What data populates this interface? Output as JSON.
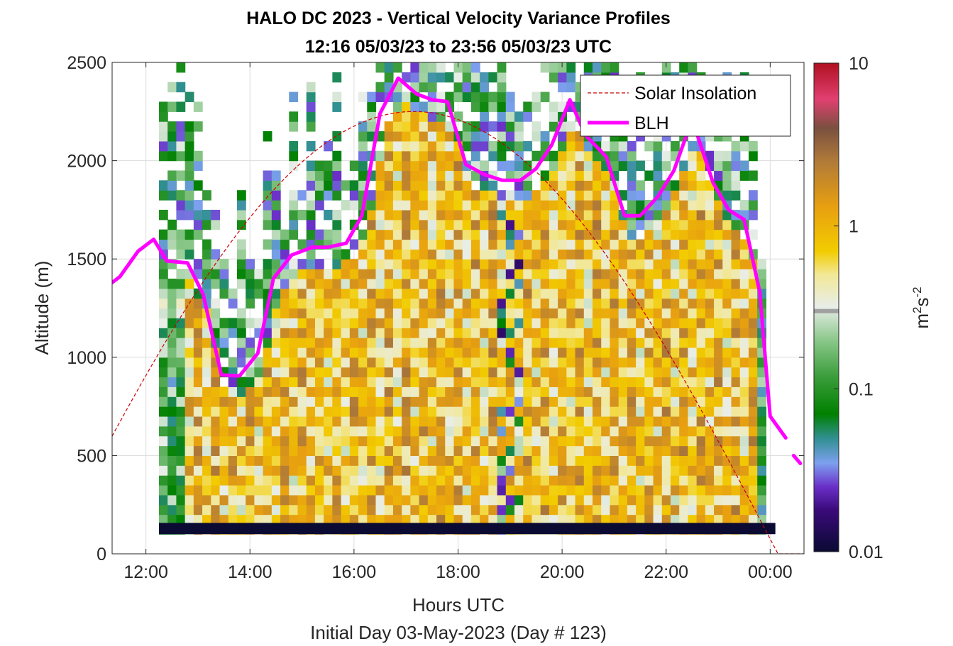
{
  "chart_data": {
    "type": "heatmap",
    "title_line1": "HALO DC 2023 - Vertical Velocity Variance Profiles",
    "title_line2": "12:16 05/03/23 to 23:56 05/03/23  UTC",
    "xlabel": "Hours UTC",
    "ylabel": "Altitude (m)",
    "footer": "Initial Day 03-May-2023 (Day # 123)",
    "x_ticks": [
      {
        "value": 12,
        "label": "12:00"
      },
      {
        "value": 14,
        "label": "14:00"
      },
      {
        "value": 16,
        "label": "16:00"
      },
      {
        "value": 18,
        "label": "18:00"
      },
      {
        "value": 20,
        "label": "20:00"
      },
      {
        "value": 22,
        "label": "22:00"
      },
      {
        "value": 24,
        "label": "00:00"
      }
    ],
    "y_ticks": [
      0,
      500,
      1000,
      1500,
      2000,
      2500
    ],
    "xlim": [
      11.35,
      24.65
    ],
    "ylim": [
      0,
      2500
    ],
    "grid": true,
    "colorbar": {
      "label_base": "m",
      "label_sup1": "2",
      "label_mid": "s",
      "label_sup2": "-2",
      "scale": "log",
      "range": [
        0.01,
        10
      ],
      "ticks": [
        {
          "value": 0.01,
          "label": "0.01"
        },
        {
          "value": 0.1,
          "label": "0.1"
        },
        {
          "value": 1,
          "label": "1"
        },
        {
          "value": 10,
          "label": "10"
        }
      ],
      "stops": [
        {
          "v": 0.01,
          "color": "#0a0a33"
        },
        {
          "v": 0.018,
          "color": "#3a0a7a"
        },
        {
          "v": 0.025,
          "color": "#6a2fc8"
        },
        {
          "v": 0.035,
          "color": "#7da0ef"
        },
        {
          "v": 0.05,
          "color": "#2f8f8f"
        },
        {
          "v": 0.07,
          "color": "#008000"
        },
        {
          "v": 0.12,
          "color": "#3c9e3c"
        },
        {
          "v": 0.2,
          "color": "#8cc88c"
        },
        {
          "v": 0.32,
          "color": "#e8ede8"
        },
        {
          "v": 0.5,
          "color": "#f2e898"
        },
        {
          "v": 0.7,
          "color": "#f2cc00"
        },
        {
          "v": 1.3,
          "color": "#e8a010"
        },
        {
          "v": 2.5,
          "color": "#b07a38"
        },
        {
          "v": 4.0,
          "color": "#7a5040"
        },
        {
          "v": 6.0,
          "color": "#e04070"
        },
        {
          "v": 10,
          "color": "#b01020"
        }
      ],
      "marker_value": 0.3
    },
    "legend": {
      "position": "top-right",
      "entries": [
        {
          "label": "Solar Insolation",
          "color": "#cc0000",
          "style": "dashed"
        },
        {
          "label": "BLH",
          "color": "#ff00ff",
          "style": "solid"
        }
      ]
    },
    "blh_series": {
      "name": "BLH",
      "x": [
        11.35,
        11.5,
        11.85,
        12.15,
        12.4,
        12.8,
        13.1,
        13.45,
        13.8,
        14.15,
        14.45,
        14.8,
        15.2,
        15.5,
        15.85,
        16.15,
        16.5,
        16.85,
        17.2,
        17.5,
        17.8,
        18.15,
        18.5,
        18.85,
        19.2,
        19.5,
        19.8,
        20.15,
        20.45,
        20.85,
        21.2,
        21.5,
        21.85,
        22.15,
        22.5,
        22.9,
        23.2,
        23.5,
        23.8,
        24.0,
        24.3
      ],
      "y": [
        1380,
        1410,
        1540,
        1600,
        1490,
        1480,
        1320,
        910,
        905,
        1020,
        1400,
        1520,
        1560,
        1560,
        1580,
        1720,
        2240,
        2420,
        2340,
        2310,
        2300,
        1980,
        1930,
        1900,
        1900,
        1960,
        2080,
        2310,
        2130,
        2020,
        1720,
        1720,
        1820,
        1950,
        2210,
        1890,
        1750,
        1700,
        1330,
        700,
        590
      ]
    },
    "blh_tail": {
      "x": [
        24.45,
        24.58
      ],
      "y": [
        500,
        460
      ]
    },
    "solar_insolation": {
      "name": "Solar Insolation",
      "peak_time": 17.15,
      "peak_altitude": 2250,
      "zero_time": 24.15,
      "flat_end": 24.65
    },
    "heatmap": {
      "t_start": 12.25,
      "t_step": 0.1667,
      "t_count": 70,
      "z_bottom": 100,
      "z_step": 50,
      "z_count": 48,
      "bottom_row_color": "#0a0a33"
    }
  }
}
